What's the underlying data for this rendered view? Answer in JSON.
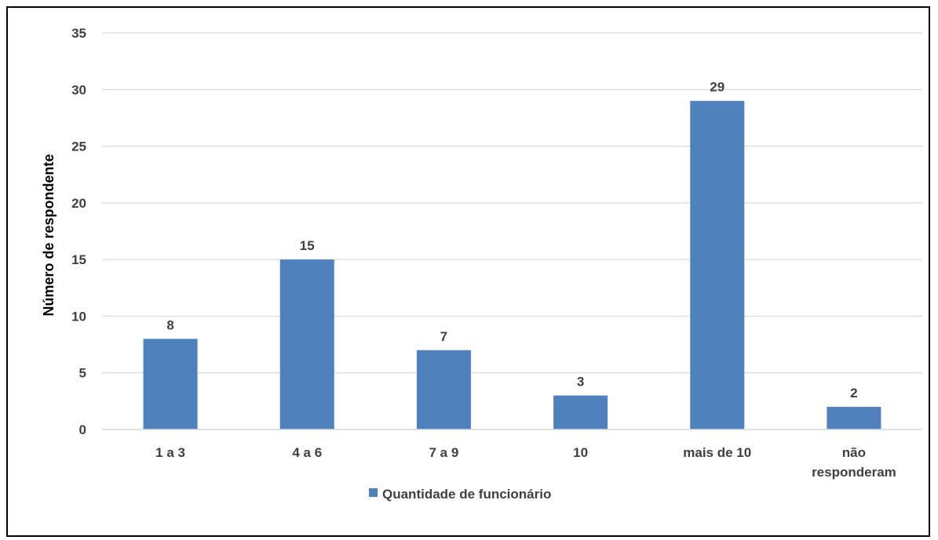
{
  "chart_data": {
    "type": "bar",
    "categories": [
      [
        "1 a 3"
      ],
      [
        "4 a 6"
      ],
      [
        "7 a 9"
      ],
      [
        "10"
      ],
      [
        "mais de 10"
      ],
      [
        "não",
        "responderam"
      ]
    ],
    "series": [
      {
        "name": "Quantidade de funcionário",
        "values": [
          8,
          15,
          7,
          3,
          29,
          2
        ],
        "color": "#4f81bd"
      }
    ],
    "ylabel": "Número de respondente",
    "xlabel": "",
    "ylim": [
      0,
      35
    ],
    "yticks": [
      0,
      5,
      10,
      15,
      20,
      25,
      30,
      35
    ],
    "grid": true,
    "legend": "bottom-center",
    "data_labels": true
  }
}
